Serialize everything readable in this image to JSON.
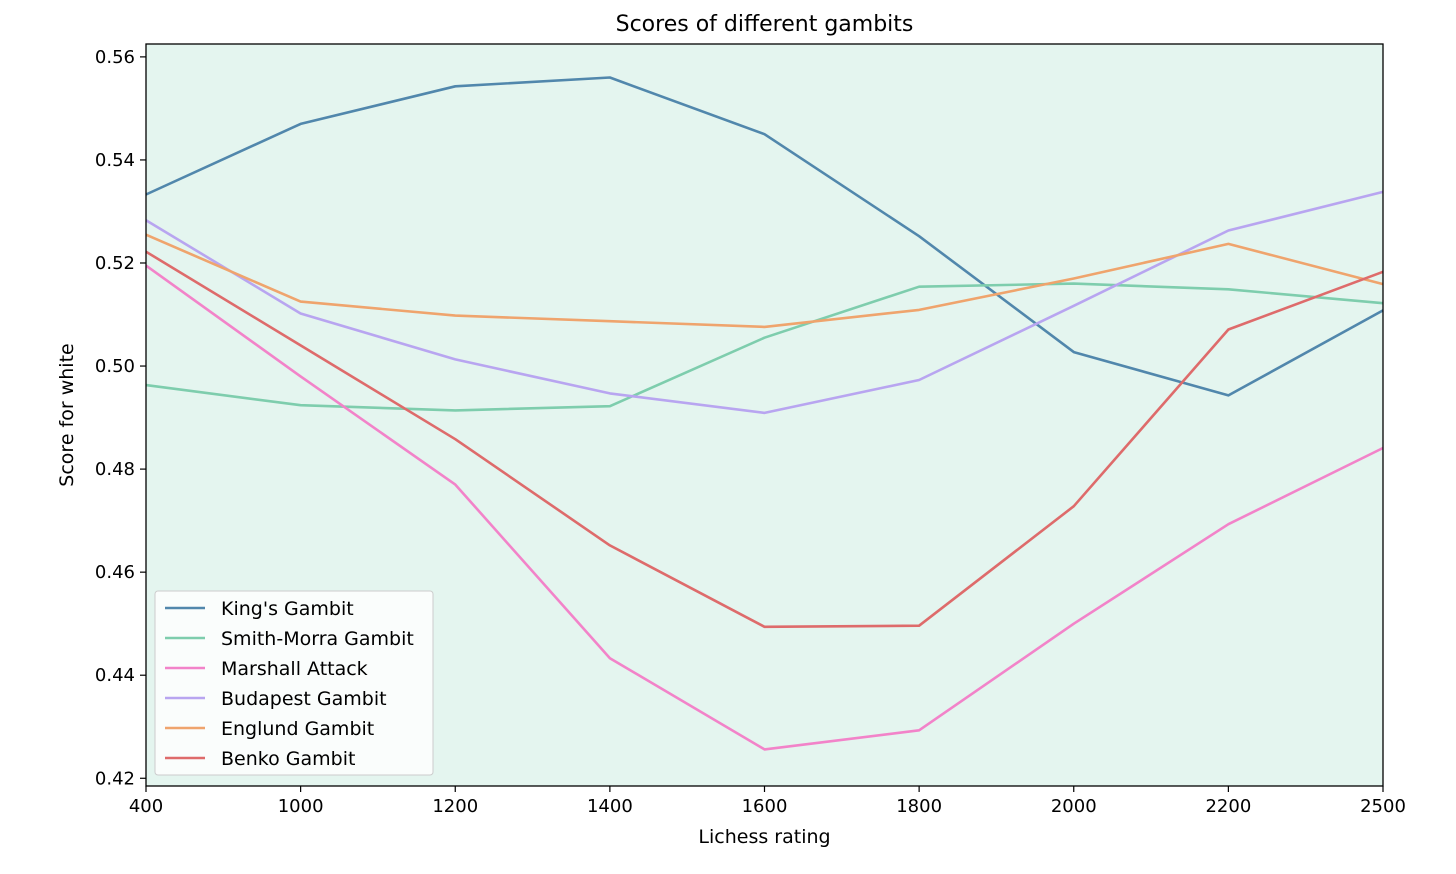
{
  "chart_data": {
    "type": "line",
    "title": "Scores of different gambits",
    "xlabel": "Lichess rating",
    "ylabel": "Score for white",
    "x": [
      400,
      1000,
      1200,
      1400,
      1600,
      1800,
      2000,
      2200,
      2500
    ],
    "x_ticks": [
      "400",
      "1000",
      "1200",
      "1400",
      "1600",
      "1800",
      "2000",
      "2200",
      "2500"
    ],
    "y_ticks": [
      "0.42",
      "0.44",
      "0.46",
      "0.48",
      "0.50",
      "0.52",
      "0.54",
      "0.56"
    ],
    "y_tick_values": [
      0.42,
      0.44,
      0.46,
      0.48,
      0.5,
      0.52,
      0.54,
      0.56
    ],
    "ylim": [
      0.4185,
      0.5625
    ],
    "x_scale": "categorical (evenly spaced ticks)",
    "grid": false,
    "legend_position": "lower-left",
    "plot_background": "#e4f5ef",
    "series": [
      {
        "name": "King's Gambit",
        "color": "#5187ac",
        "values": [
          0.5333,
          0.547,
          0.5543,
          0.556,
          0.545,
          0.5252,
          0.5027,
          0.4943,
          0.5108
        ]
      },
      {
        "name": "Smith-Morra Gambit",
        "color": "#7ecdad",
        "values": [
          0.4963,
          0.4924,
          0.4914,
          0.4922,
          0.5055,
          0.5154,
          0.516,
          0.5149,
          0.5122
        ]
      },
      {
        "name": "Marshall Attack",
        "color": "#f283c9",
        "values": [
          0.5195,
          0.498,
          0.477,
          0.4433,
          0.4256,
          0.4293,
          0.45,
          0.4693,
          0.4841
        ]
      },
      {
        "name": "Budapest Gambit",
        "color": "#b8a5f0",
        "values": [
          0.5283,
          0.5102,
          0.5013,
          0.4947,
          0.4909,
          0.4973,
          0.5117,
          0.5263,
          0.5338
        ]
      },
      {
        "name": "Englund Gambit",
        "color": "#efa46d",
        "values": [
          0.5255,
          0.5125,
          0.5098,
          0.5087,
          0.5076,
          0.5109,
          0.517,
          0.5237,
          0.5159
        ]
      },
      {
        "name": "Benko Gambit",
        "color": "#de6b6b",
        "values": [
          0.5222,
          0.504,
          0.4858,
          0.4652,
          0.4494,
          0.4496,
          0.4728,
          0.5071,
          0.5183
        ]
      }
    ]
  }
}
